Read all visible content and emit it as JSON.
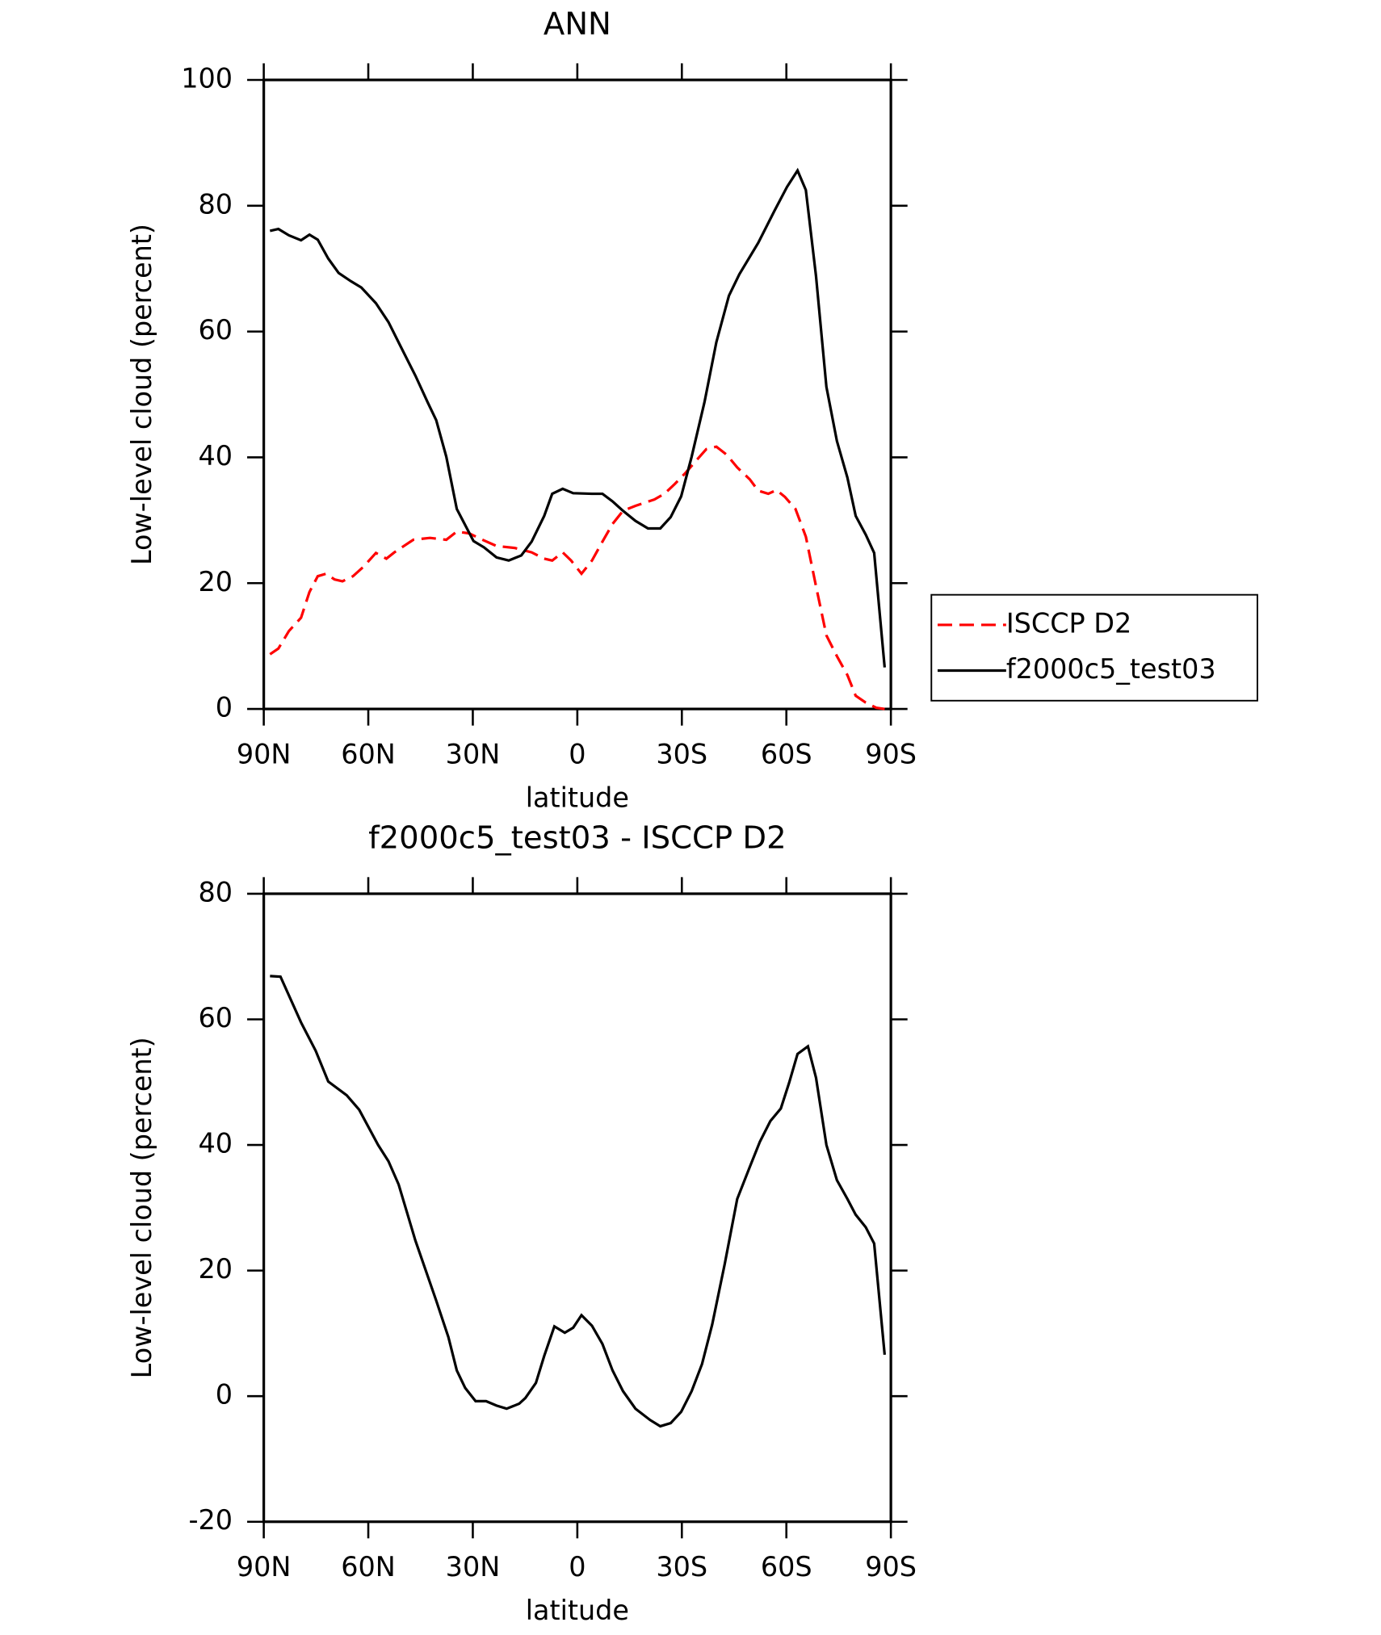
{
  "chart_data": [
    {
      "type": "line",
      "title": "ANN",
      "xlabel": "latitude",
      "ylabel": "Low-level cloud (percent)",
      "xlim": [
        90,
        -90
      ],
      "ylim": [
        0,
        100
      ],
      "xticks": [
        {
          "value": 90,
          "label": "90N"
        },
        {
          "value": 60,
          "label": "60N"
        },
        {
          "value": 30,
          "label": "30N"
        },
        0,
        {
          "value": -30,
          "label": "30S"
        },
        {
          "value": -60,
          "label": "60S"
        },
        {
          "value": -90,
          "label": "90S"
        }
      ],
      "yticks": [
        0,
        20,
        40,
        60,
        80,
        100
      ],
      "legend": "right",
      "series": [
        {
          "name": "ISCCP D2",
          "color": "#ff0000",
          "style": "dashed",
          "x": [
            88.2,
            85.8,
            82.8,
            79.3,
            76.9,
            74.5,
            72.1,
            69.7,
            67.4,
            64.4,
            61.4,
            57.8,
            54.8,
            52.5,
            47.1,
            42.3,
            37.6,
            34.6,
            31.0,
            28.0,
            23.2,
            17.9,
            13.1,
            9.5,
            7.2,
            4.2,
            1.8,
            -1.2,
            -4.2,
            -7.2,
            -10.1,
            -13.1,
            -16.7,
            -22.1,
            -25.0,
            -28.0,
            -31.0,
            -34.0,
            -37.0,
            -39.9,
            -42.9,
            -45.9,
            -49.5,
            -51.9,
            -54.8,
            -57.2,
            -59.6,
            -62.6,
            -65.6,
            -68.5,
            -71.5,
            -74.5,
            -77.5,
            -79.9,
            -82.8,
            -85.8,
            -88.2
          ],
          "values": [
            8.7,
            9.6,
            12.4,
            14.5,
            18.6,
            21.1,
            21.5,
            20.6,
            20.3,
            21.1,
            22.6,
            24.8,
            23.9,
            24.9,
            26.9,
            27.2,
            26.9,
            28.2,
            27.9,
            27.1,
            25.9,
            25.6,
            24.9,
            23.9,
            23.6,
            24.9,
            23.6,
            21.5,
            23.6,
            26.6,
            29.4,
            31.5,
            32.3,
            33.3,
            34.2,
            35.8,
            37.5,
            39.4,
            41.3,
            41.7,
            40.4,
            38.4,
            36.5,
            34.7,
            34.2,
            34.8,
            33.7,
            31.8,
            27.4,
            19.5,
            11.7,
            8.4,
            5.4,
            2.1,
            1.0,
            0.2,
            0
          ]
        },
        {
          "name": "f2000c5_test03",
          "color": "#000000",
          "style": "solid",
          "x": [
            88.2,
            85.8,
            82.8,
            79.3,
            76.9,
            74.5,
            71.5,
            68.5,
            65.0,
            62.0,
            57.8,
            54.2,
            50.7,
            46.5,
            42.9,
            40.5,
            37.6,
            34.6,
            29.8,
            26.8,
            23.2,
            19.7,
            16.1,
            13.1,
            9.5,
            7.2,
            4.2,
            1.2,
            -4.2,
            -7.2,
            -10.1,
            -13.1,
            -16.7,
            -20.3,
            -23.8,
            -26.8,
            -29.8,
            -32.8,
            -36.5,
            -39.9,
            -43.5,
            -46.5,
            -51.9,
            -56.6,
            -60.2,
            -63.2,
            -65.6,
            -68.5,
            -71.5,
            -74.5,
            -77.5,
            -79.9,
            -82.8,
            -85.2,
            -88.2
          ],
          "values": [
            76.0,
            76.3,
            75.3,
            74.5,
            75.4,
            74.6,
            71.6,
            69.3,
            68.0,
            67.0,
            64.5,
            61.5,
            57.6,
            53.0,
            48.7,
            45.9,
            40.1,
            31.8,
            26.7,
            25.7,
            24.1,
            23.6,
            24.4,
            26.6,
            30.7,
            34.2,
            35.0,
            34.3,
            34.2,
            34.2,
            33.0,
            31.5,
            29.9,
            28.7,
            28.7,
            30.5,
            33.8,
            40.1,
            48.8,
            58.3,
            65.7,
            69.1,
            74.1,
            79.2,
            83.0,
            85.6,
            82.5,
            68.8,
            51.2,
            42.6,
            36.8,
            30.7,
            27.7,
            24.8,
            6.6
          ]
        }
      ]
    },
    {
      "type": "line",
      "title": "f2000c5_test03 - ISCCP D2",
      "xlabel": "latitude",
      "ylabel": "Low-level cloud (percent)",
      "xlim": [
        90,
        -90
      ],
      "ylim": [
        -20,
        80
      ],
      "xticks": [
        {
          "value": 90,
          "label": "90N"
        },
        {
          "value": 60,
          "label": "60N"
        },
        {
          "value": 30,
          "label": "30N"
        },
        0,
        {
          "value": -30,
          "label": "30S"
        },
        {
          "value": -60,
          "label": "60S"
        },
        {
          "value": -90,
          "label": "90S"
        }
      ],
      "yticks": [
        -20,
        0,
        20,
        40,
        60,
        80
      ],
      "series": [
        {
          "color": "#000000",
          "style": "solid",
          "x": [
            88.2,
            85.2,
            79.3,
            75.1,
            71.5,
            66.2,
            62.6,
            57.2,
            54.2,
            51.3,
            46.5,
            40.5,
            37.0,
            34.6,
            32.2,
            29.2,
            26.2,
            23.2,
            20.3,
            16.7,
            14.9,
            11.9,
            9.5,
            6.6,
            3.6,
            1.2,
            -1.2,
            -4.2,
            -7.2,
            -10.1,
            -13.1,
            -16.7,
            -20.9,
            -23.8,
            -26.8,
            -29.8,
            -32.8,
            -35.8,
            -38.7,
            -42.3,
            -45.9,
            -49.5,
            -52.4,
            -55.4,
            -58.4,
            -60.8,
            -63.2,
            -66.2,
            -68.5,
            -71.5,
            -74.5,
            -77.5,
            -79.9,
            -82.8,
            -85.2,
            -88.2
          ],
          "values": [
            66.9,
            66.8,
            59.5,
            55.0,
            50.1,
            47.9,
            45.6,
            40.0,
            37.4,
            33.7,
            24.8,
            15.2,
            9.4,
            4.1,
            1.3,
            -0.8,
            -0.8,
            -1.5,
            -2.0,
            -1.2,
            -0.3,
            2.1,
            6.4,
            11.1,
            10.1,
            10.9,
            12.9,
            11.2,
            8.3,
            4.1,
            0.8,
            -2.0,
            -3.8,
            -4.8,
            -4.3,
            -2.5,
            0.8,
            5.1,
            11.4,
            21.0,
            31.4,
            36.5,
            40.5,
            43.8,
            45.8,
            49.9,
            54.5,
            55.7,
            50.7,
            40.0,
            34.4,
            31.4,
            28.9,
            26.9,
            24.3,
            6.6
          ]
        }
      ]
    }
  ]
}
